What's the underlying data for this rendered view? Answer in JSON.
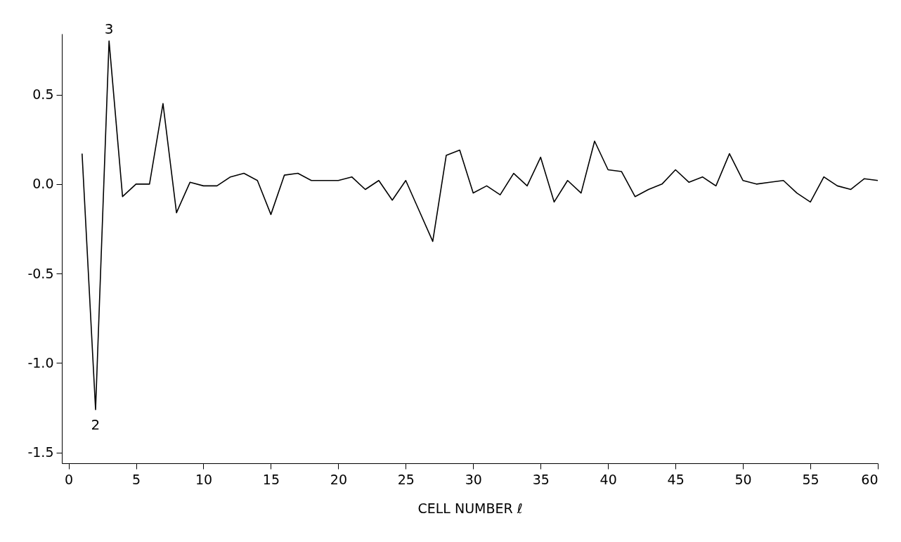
{
  "chart_data": {
    "type": "line",
    "xlabel": "CELL NUMBER ℓ",
    "x": [
      1,
      2,
      3,
      4,
      5,
      6,
      7,
      8,
      9,
      10,
      11,
      12,
      13,
      14,
      15,
      16,
      17,
      18,
      19,
      20,
      21,
      22,
      23,
      24,
      25,
      26,
      27,
      28,
      29,
      30,
      31,
      32,
      33,
      34,
      35,
      36,
      37,
      38,
      39,
      40,
      41,
      42,
      43,
      44,
      45,
      46,
      47,
      48,
      49,
      50,
      51,
      52,
      53,
      54,
      55,
      56,
      57,
      58,
      59,
      60
    ],
    "series": [
      {
        "color": "#000000",
        "values": [
          0.17,
          -1.26,
          0.8,
          -0.07,
          0.0,
          0.0,
          0.45,
          -0.16,
          0.01,
          -0.01,
          -0.01,
          0.04,
          0.06,
          0.02,
          -0.17,
          0.05,
          0.06,
          0.02,
          0.02,
          0.02,
          0.04,
          -0.03,
          0.02,
          -0.09,
          0.02,
          -0.15,
          -0.32,
          0.16,
          0.19,
          -0.05,
          -0.01,
          -0.06,
          0.06,
          -0.01,
          0.15,
          -0.1,
          0.02,
          -0.05,
          0.24,
          0.08,
          0.07,
          -0.07,
          -0.03,
          0.0,
          0.08,
          0.01,
          0.04,
          -0.01,
          0.17,
          0.02,
          0.0,
          0.01,
          0.02,
          -0.05,
          -0.1,
          0.04,
          -0.01,
          -0.03,
          0.03,
          0.02
        ]
      }
    ],
    "xlim": [
      -0.5,
      60
    ],
    "xticks": [
      0,
      5,
      10,
      15,
      20,
      25,
      30,
      35,
      40,
      45,
      50,
      55,
      60
    ],
    "ylim": [
      -1.56,
      0.84
    ],
    "yticks": [
      {
        "value": -1.5,
        "label": "-1.5"
      },
      {
        "value": -1,
        "label": "-1.0"
      },
      {
        "value": -0.5,
        "label": "-0.5"
      },
      {
        "value": 0,
        "label": "0.0"
      },
      {
        "value": 0.5,
        "label": "0.5"
      }
    ],
    "annotations": [
      {
        "text": "2",
        "x": 2,
        "y": -1.26
      },
      {
        "text": "3",
        "x": 3,
        "y": 0.8
      }
    ],
    "grid": false,
    "line_style": "solid"
  }
}
